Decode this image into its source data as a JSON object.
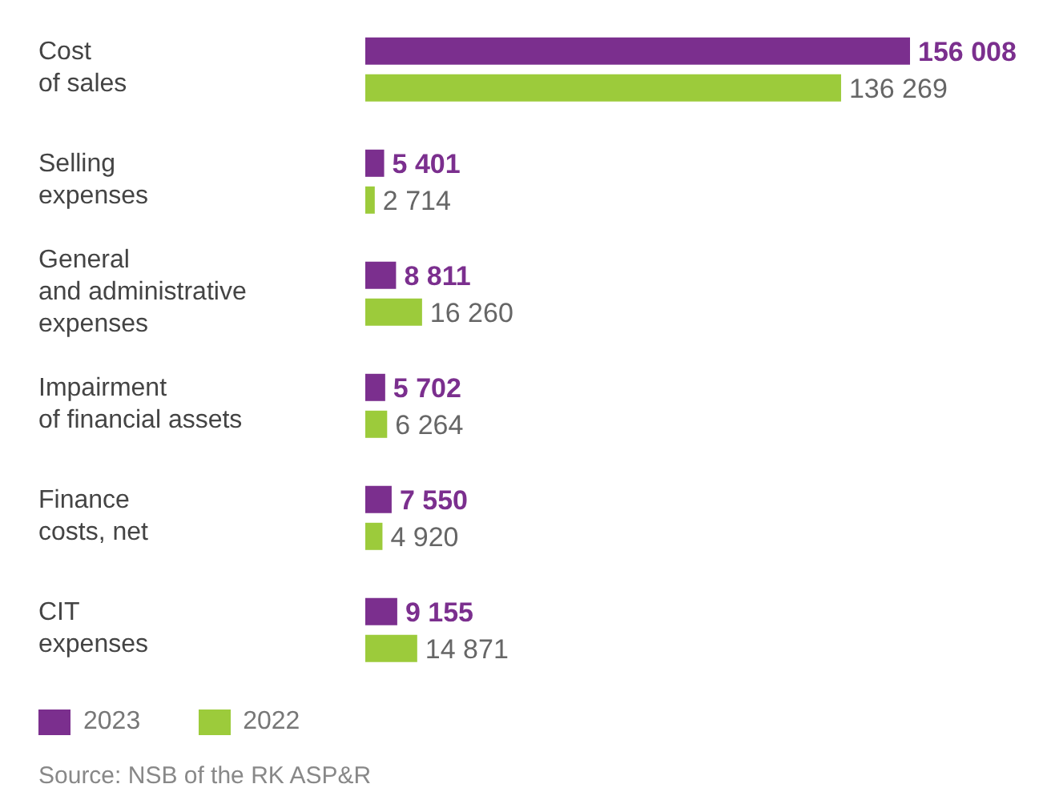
{
  "chart_data": {
    "type": "bar",
    "orientation": "horizontal",
    "categories": [
      "Cost\nof sales",
      "Selling\nexpenses",
      "General\nand administrative\nexpenses",
      "Impairment\nof financial assets",
      "Finance\ncosts, net",
      "CIT\nexpenses"
    ],
    "series": [
      {
        "name": "2023",
        "color": "#7b2f8e",
        "values": [
          156008,
          5401,
          8811,
          5702,
          7550,
          9155
        ]
      },
      {
        "name": "2022",
        "color": "#9ccb3b",
        "values": [
          136269,
          2714,
          16260,
          6264,
          4920,
          14871
        ]
      }
    ],
    "data_labels": true,
    "legend": "bottom left",
    "annotations": [
      "Source: NSB of the RK ASP&R"
    ]
  }
}
